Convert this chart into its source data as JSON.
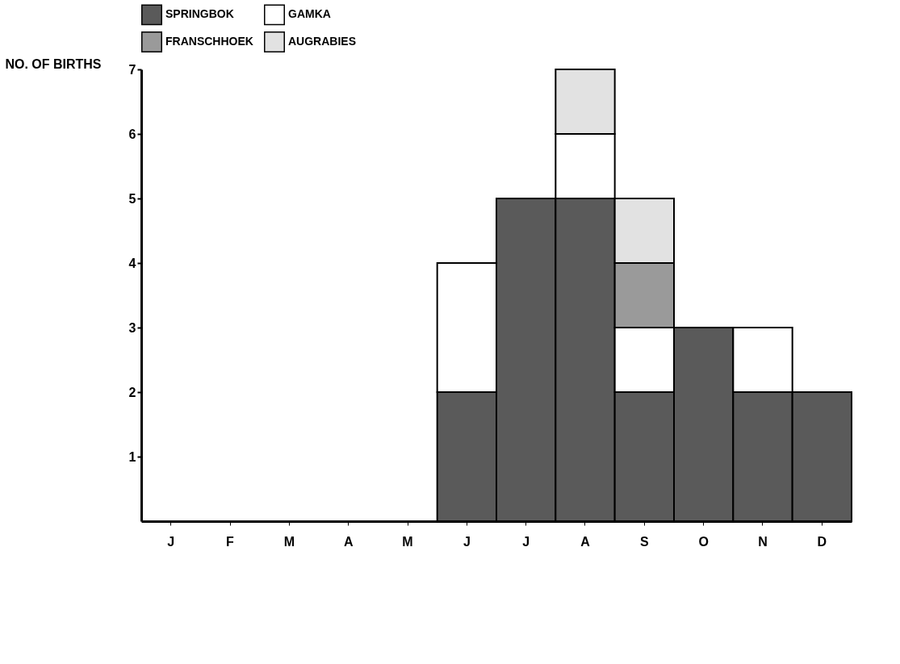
{
  "chart_data": {
    "type": "bar",
    "stacked": true,
    "ylabel": "NO. OF BIRTHS",
    "categories": [
      "J",
      "F",
      "M",
      "A",
      "M",
      "J",
      "J",
      "A",
      "S",
      "O",
      "N",
      "D"
    ],
    "series": [
      {
        "name": "SPRINGBOK",
        "color": "#5a5a5a",
        "values": [
          null,
          null,
          null,
          null,
          null,
          2,
          5,
          5,
          2,
          3,
          2,
          2
        ]
      },
      {
        "name": "GAMKA",
        "color": "#ffffff",
        "values": [
          null,
          null,
          null,
          null,
          null,
          2,
          null,
          1,
          1,
          null,
          1,
          null
        ]
      },
      {
        "name": "FRANSCHHOEK",
        "color": "#9a9a9a",
        "values": [
          null,
          null,
          null,
          null,
          null,
          null,
          null,
          null,
          1,
          null,
          null,
          null
        ]
      },
      {
        "name": "AUGRABIES",
        "color": "#e2e2e2",
        "values": [
          null,
          null,
          null,
          null,
          null,
          null,
          null,
          1,
          1,
          null,
          null,
          null
        ]
      }
    ],
    "ylim": [
      0,
      7
    ],
    "yticks": [
      1,
      2,
      3,
      4,
      5,
      6,
      7
    ],
    "grid": false,
    "legend": "top"
  }
}
